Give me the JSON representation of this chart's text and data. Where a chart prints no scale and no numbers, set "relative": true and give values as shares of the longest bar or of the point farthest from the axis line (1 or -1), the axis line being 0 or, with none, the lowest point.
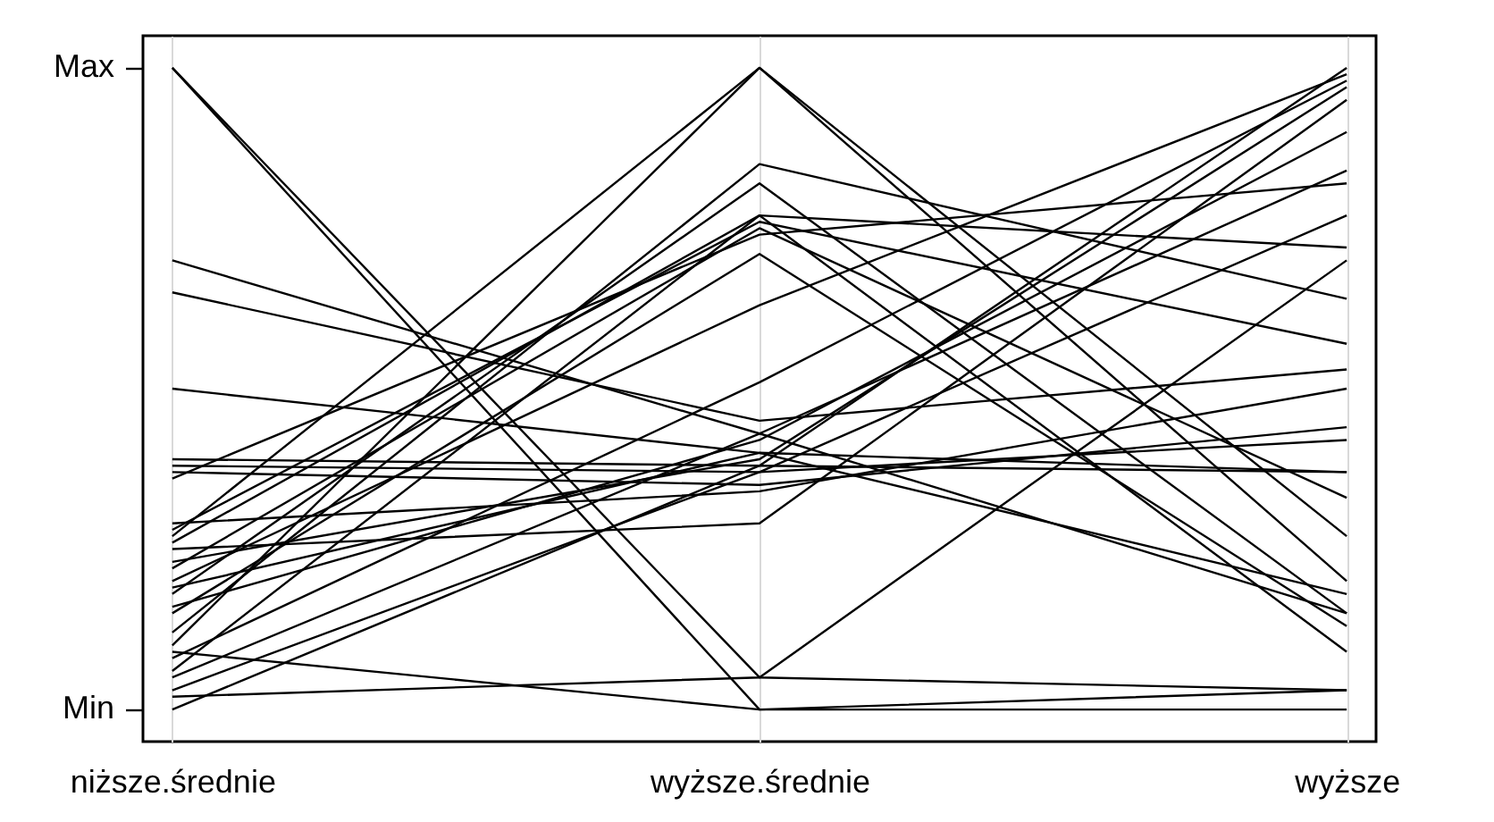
{
  "chart_data": {
    "type": "line",
    "categories": [
      "niższe.średnie",
      "wyższe.średnie",
      "wyższe"
    ],
    "relative": true,
    "annotations": [
      "Max",
      "Min"
    ],
    "grid": "x",
    "legend": false,
    "line_style": "solid",
    "marker": "none",
    "series": [
      {
        "color": "#000000",
        "values": [
          1.0,
          0,
          0
        ]
      },
      {
        "color": "#000000",
        "values": [
          1.0,
          0.05,
          0.03
        ]
      },
      {
        "color": "#000000",
        "values": [
          0.7,
          0.43,
          0.15
        ]
      },
      {
        "color": "#000000",
        "values": [
          0.65,
          0.45,
          0.53
        ]
      },
      {
        "color": "#000000",
        "values": [
          0.5,
          0.4,
          0.18
        ]
      },
      {
        "color": "#000000",
        "values": [
          0.39,
          0.38,
          0.37
        ]
      },
      {
        "color": "#000000",
        "values": [
          0.38,
          0.37,
          0.42
        ]
      },
      {
        "color": "#000000",
        "values": [
          0.37,
          0.35,
          0.44
        ]
      },
      {
        "color": "#000000",
        "values": [
          0.36,
          0.74,
          0.82
        ]
      },
      {
        "color": "#000000",
        "values": [
          0.29,
          0.34,
          0.5
        ]
      },
      {
        "color": "#000000",
        "values": [
          0.28,
          0.76,
          0.57
        ]
      },
      {
        "color": "#000000",
        "values": [
          0.27,
          1.0,
          0.2
        ]
      },
      {
        "color": "#000000",
        "values": [
          0.26,
          0.77,
          0.72
        ]
      },
      {
        "color": "#000000",
        "values": [
          0.25,
          0.29,
          0.95
        ]
      },
      {
        "color": "#000000",
        "values": [
          0.23,
          0.39,
          0.97
        ]
      },
      {
        "color": "#000000",
        "values": [
          0.22,
          0.75,
          0.33
        ]
      },
      {
        "color": "#000000",
        "values": [
          0.2,
          0.63,
          0.99
        ]
      },
      {
        "color": "#000000",
        "values": [
          0.18,
          0.82,
          0.15
        ]
      },
      {
        "color": "#000000",
        "values": [
          0.16,
          0.42,
          0.9
        ]
      },
      {
        "color": "#000000",
        "values": [
          0.15,
          0.71,
          0.13
        ]
      },
      {
        "color": "#000000",
        "values": [
          0.12,
          0.85,
          0.64
        ]
      },
      {
        "color": "#000000",
        "values": [
          0.1,
          1.0,
          0.27
        ]
      },
      {
        "color": "#000000",
        "values": [
          0.08,
          0.51,
          0.98
        ]
      },
      {
        "color": "#000000",
        "values": [
          0.06,
          0.77,
          0.09
        ]
      },
      {
        "color": "#000000",
        "values": [
          0.05,
          0.43,
          0.84
        ]
      },
      {
        "color": "#000000",
        "values": [
          0.03,
          0.37,
          0.77
        ]
      },
      {
        "color": "#000000",
        "values": [
          0.02,
          0.05,
          0.7
        ]
      },
      {
        "color": "#000000",
        "values": [
          0,
          0.38,
          1.0
        ]
      },
      {
        "color": "#000000",
        "values": [
          0.09,
          0,
          0.03
        ]
      },
      {
        "color": "#000000",
        "values": [
          0.19,
          0.4,
          0.37
        ]
      }
    ]
  }
}
